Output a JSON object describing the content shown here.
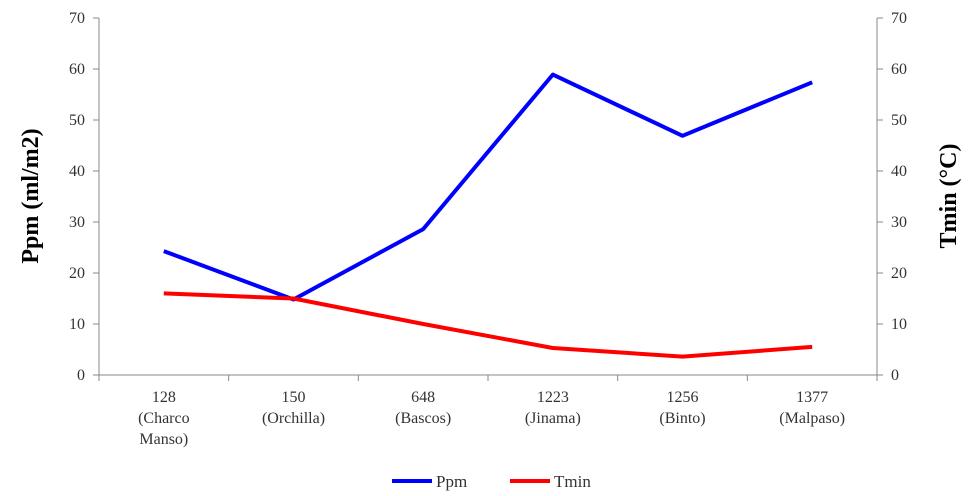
{
  "chart_data": {
    "type": "line",
    "categories": [
      [
        "128",
        "(Charco",
        "Manso)"
      ],
      [
        "150",
        "(Orchilla)"
      ],
      [
        "648",
        "(Bascos)"
      ],
      [
        "1223",
        "(Jinama)"
      ],
      [
        "1256",
        "(Binto)"
      ],
      [
        "1377",
        "(Malpaso)"
      ]
    ],
    "series": [
      {
        "name": "Ppm",
        "axis": "left",
        "color": "#0000ff",
        "values": [
          24.3,
          14.8,
          28.6,
          58.9,
          46.9,
          57.4
        ]
      },
      {
        "name": "Tmin",
        "axis": "right",
        "color": "#ff0000",
        "values": [
          16.0,
          15.0,
          10.0,
          5.3,
          3.6,
          5.5
        ]
      }
    ],
    "ylabel_left": "Ppm (ml/m2)",
    "ylabel_right": "Tmin (°C)",
    "ylim_left": [
      0,
      70
    ],
    "ylim_right": [
      0,
      70
    ],
    "yticks": [
      0,
      10,
      20,
      30,
      40,
      50,
      60,
      70
    ],
    "grid": false,
    "legend_position": "bottom"
  }
}
